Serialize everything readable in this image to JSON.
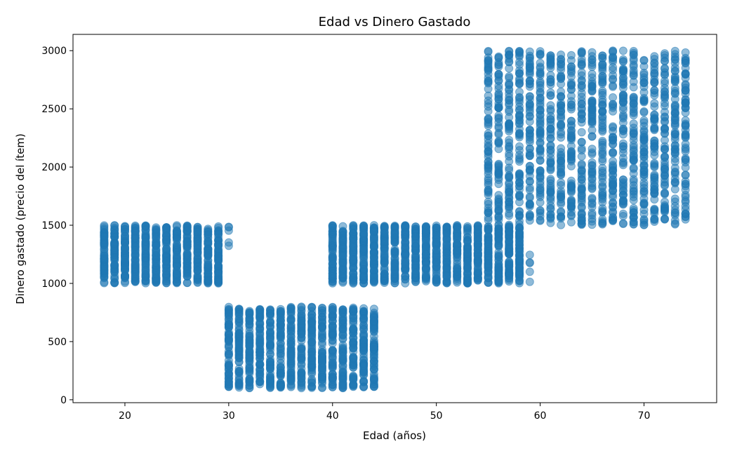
{
  "chart_data": {
    "type": "scatter",
    "title": "Edad vs Dinero Gastado",
    "xlabel": "Edad (años)",
    "ylabel": "Dinero gastado (precio del ítem)",
    "xlim": [
      15,
      77
    ],
    "ylim": [
      -25,
      3140
    ],
    "xticks": [
      20,
      30,
      40,
      50,
      60,
      70
    ],
    "yticks": [
      0,
      500,
      1000,
      1500,
      2000,
      2500,
      3000
    ],
    "grid": false,
    "legend": "none",
    "marker_color": "#1f77b4",
    "marker_alpha": 0.5,
    "clusters": [
      {
        "ages": [
          18,
          19,
          20,
          21,
          22,
          23,
          24,
          25,
          26,
          27,
          28,
          29
        ],
        "y_range": [
          1000,
          1500
        ]
      },
      {
        "ages": [
          30
        ],
        "y_range": [
          1280,
          1500
        ],
        "sparse": true
      },
      {
        "ages": [
          30,
          31,
          32,
          33,
          34,
          35,
          36,
          37,
          38,
          39,
          40,
          41,
          42,
          43,
          44
        ],
        "y_range": [
          100,
          800
        ]
      },
      {
        "ages": [
          40,
          41,
          42,
          43,
          44,
          45,
          46,
          47,
          48,
          49,
          50,
          51,
          52,
          53,
          54,
          55,
          56,
          57,
          58
        ],
        "y_range": [
          1000,
          1500
        ]
      },
      {
        "ages": [
          59
        ],
        "y_range": [
          1000,
          1400
        ],
        "sparse": true
      },
      {
        "ages": [
          55,
          56,
          57,
          58,
          59,
          60,
          61,
          62,
          63,
          64,
          65,
          66,
          67,
          68,
          69,
          70,
          71,
          72,
          73,
          74
        ],
        "y_range": [
          1500,
          3000
        ]
      }
    ]
  }
}
